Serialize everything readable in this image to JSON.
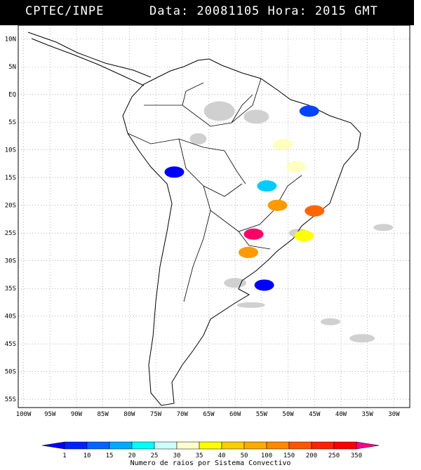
{
  "header": {
    "org": "CPTEC/INPE",
    "datetime": "Data: 20081105 Hora: 2015 GMT"
  },
  "map": {
    "lat_labels": [
      "10N",
      "5N",
      "EQ",
      "5S",
      "10S",
      "15S",
      "20S",
      "25S",
      "30S",
      "35S",
      "40S",
      "45S",
      "50S",
      "55S"
    ],
    "lat_values": [
      10,
      5,
      0,
      -5,
      -10,
      -15,
      -20,
      -25,
      -30,
      -35,
      -40,
      -45,
      -50,
      -55
    ],
    "lon_labels": [
      "100W",
      "95W",
      "90W",
      "85W",
      "80W",
      "75W",
      "70W",
      "65W",
      "60W",
      "55W",
      "50W",
      "45W",
      "40W",
      "35W",
      "30W"
    ],
    "lon_values": [
      -100,
      -95,
      -90,
      -85,
      -80,
      -75,
      -70,
      -65,
      -60,
      -55,
      -50,
      -45,
      -40,
      -35,
      -30
    ],
    "extent": {
      "lon_min": -101,
      "lon_max": -27,
      "lat_min": -56.5,
      "lat_max": 12.5
    },
    "grid": "dotted",
    "cloud_color": "#c8c8c8",
    "convective_systems": [
      {
        "lon": -71.5,
        "lat": -14.0,
        "color": "#0000ff"
      },
      {
        "lon": -52.0,
        "lat": -20.0,
        "color": "#ff9900"
      },
      {
        "lon": -54.0,
        "lat": -16.5,
        "color": "#00ccff"
      },
      {
        "lon": -48.5,
        "lat": -13.0,
        "color": "#ffffc0"
      },
      {
        "lon": -51.0,
        "lat": -9.0,
        "color": "#ffffc0"
      },
      {
        "lon": -45.0,
        "lat": -21.0,
        "color": "#ff6600"
      },
      {
        "lon": -47.0,
        "lat": -25.5,
        "color": "#ffff00"
      },
      {
        "lon": -56.5,
        "lat": -25.2,
        "color": "#ff0066"
      },
      {
        "lon": -57.5,
        "lat": -28.5,
        "color": "#ff9900"
      },
      {
        "lon": -54.5,
        "lat": -34.4,
        "color": "#0000ff"
      },
      {
        "lon": -46.0,
        "lat": -3.0,
        "color": "#0044ff"
      }
    ]
  },
  "legend": {
    "labels": [
      "1",
      "10",
      "15",
      "20",
      "25",
      "30",
      "35",
      "40",
      "50",
      "100",
      "150",
      "200",
      "250",
      "350"
    ],
    "colors": [
      "#0000ff",
      "#0022ff",
      "#0066ff",
      "#00aaff",
      "#00ffff",
      "#ccffff",
      "#ffffcc",
      "#ffff00",
      "#ffcc00",
      "#ffaa00",
      "#ff8800",
      "#ff5500",
      "#ff2200",
      "#ff0000",
      "#ff0088"
    ],
    "title": "Numero de raios por Sistema Convectivo"
  }
}
